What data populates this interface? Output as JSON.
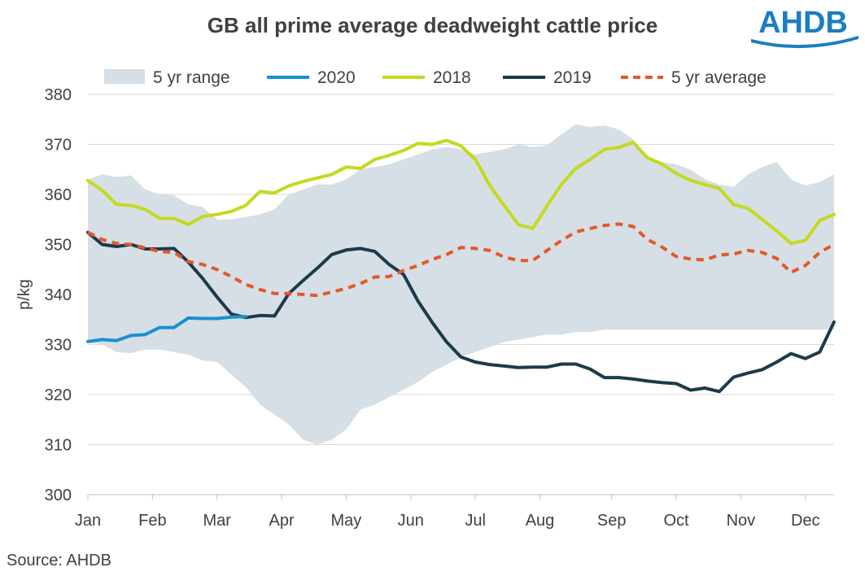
{
  "header": {
    "title": "GB all prime average deadweight cattle price",
    "logo_text": "AHDB"
  },
  "footer": {
    "source": "Source: AHDB"
  },
  "colors": {
    "range": "#d5dfe5",
    "s2020": "#1a8fd1",
    "s2018": "#c5d91e",
    "s2019": "#1d3a4a",
    "avg": "#e4582a",
    "grid": "#d9d9d9",
    "logo": "#1b7ec2"
  },
  "chart_data": {
    "type": "line",
    "title": "GB all prime average deadweight cattle price",
    "ylabel": "p/kg",
    "xlabel": "",
    "ylim": [
      300,
      380
    ],
    "yticks": [
      300,
      310,
      320,
      330,
      340,
      350,
      360,
      370,
      380
    ],
    "xlim": [
      1,
      53
    ],
    "x_ticks": [
      {
        "label": "Jan",
        "week": 1
      },
      {
        "label": "Feb",
        "week": 5.5
      },
      {
        "label": "Mar",
        "week": 10
      },
      {
        "label": "Apr",
        "week": 14.5
      },
      {
        "label": "May",
        "week": 19
      },
      {
        "label": "Jun",
        "week": 23.5
      },
      {
        "label": "Jul",
        "week": 28
      },
      {
        "label": "Aug",
        "week": 32.5
      },
      {
        "label": "Sep",
        "week": 37.5
      },
      {
        "label": "Oct",
        "week": 42
      },
      {
        "label": "Nov",
        "week": 46.5
      },
      {
        "label": "Dec",
        "week": 51
      }
    ],
    "grid": true,
    "legend_position": "top",
    "x": [
      1,
      2,
      3,
      4,
      5,
      6,
      7,
      8,
      9,
      10,
      11,
      12,
      13,
      14,
      15,
      16,
      17,
      18,
      19,
      20,
      21,
      22,
      23,
      24,
      25,
      26,
      27,
      28,
      29,
      30,
      31,
      32,
      33,
      34,
      35,
      36,
      37,
      38,
      39,
      40,
      41,
      42,
      43,
      44,
      45,
      46,
      47,
      48,
      49,
      50,
      51,
      52,
      53
    ],
    "range": {
      "name": "5 yr range",
      "upper": [
        363.0,
        364.0,
        363.5,
        363.8,
        361.0,
        360.0,
        359.8,
        358.0,
        357.5,
        355.0,
        355.0,
        355.5,
        356.0,
        357.0,
        360.0,
        361.0,
        362.0,
        362.0,
        363.0,
        365.0,
        365.5,
        366.0,
        367.0,
        368.0,
        369.0,
        369.5,
        369.0,
        368.0,
        368.5,
        369.0,
        370.0,
        369.5,
        369.8,
        372.0,
        374.0,
        373.5,
        373.8,
        373.0,
        371.0,
        367.0,
        366.5,
        366.0,
        365.0,
        363.0,
        362.0,
        361.5,
        364.0,
        365.5,
        366.5,
        363.0,
        361.8,
        362.5,
        364.0
      ],
      "lower": [
        330.5,
        330.0,
        328.5,
        328.3,
        329.0,
        329.0,
        328.5,
        328.0,
        326.8,
        326.5,
        324.0,
        321.5,
        318.0,
        316.0,
        314.0,
        311.0,
        310.0,
        311.0,
        313.0,
        317.0,
        318.0,
        319.5,
        321.0,
        322.5,
        324.5,
        326.0,
        327.5,
        328.5,
        329.5,
        330.5,
        331.0,
        331.5,
        332.0,
        332.0,
        332.5,
        332.5,
        333.0,
        333.0,
        333.0,
        333.0,
        333.0,
        333.0,
        333.0,
        333.0,
        333.0,
        333.0,
        333.0,
        333.0,
        333.0,
        333.0,
        333.0,
        333.0,
        333.0
      ]
    },
    "series": [
      {
        "name": "2020",
        "key": "s2020",
        "dashed": false,
        "values": [
          330.6,
          331.0,
          330.8,
          331.8,
          332.0,
          333.4,
          333.4,
          335.3,
          335.2,
          335.2,
          335.5,
          335.6,
          null,
          null,
          null,
          null,
          null,
          null,
          null,
          null,
          null,
          null,
          null,
          null,
          null,
          null,
          null,
          null,
          null,
          null,
          null,
          null,
          null,
          null,
          null,
          null,
          null,
          null,
          null,
          null,
          null,
          null,
          null,
          null,
          null,
          null,
          null,
          null,
          null,
          null,
          null,
          null,
          null
        ]
      },
      {
        "name": "2018",
        "key": "s2018",
        "dashed": false,
        "values": [
          362.8,
          360.8,
          358.0,
          357.8,
          357.0,
          355.2,
          355.2,
          354.0,
          355.6,
          356.0,
          356.6,
          357.8,
          360.6,
          360.3,
          361.7,
          362.6,
          363.3,
          364.0,
          365.5,
          365.2,
          367.0,
          367.8,
          368.8,
          370.2,
          370.0,
          370.8,
          369.7,
          367.0,
          361.8,
          357.8,
          354.0,
          353.2,
          357.7,
          362.0,
          365.2,
          367.0,
          369.0,
          369.4,
          370.4,
          367.3,
          366.1,
          364.2,
          362.8,
          362.0,
          361.2,
          358.0,
          357.2,
          355.0,
          352.7,
          350.2,
          350.8,
          354.8,
          356.0
        ]
      },
      {
        "name": "2019",
        "key": "s2019",
        "dashed": false,
        "values": [
          352.4,
          350.0,
          349.6,
          350.0,
          349.1,
          349.1,
          349.2,
          346.5,
          343.2,
          339.5,
          336.1,
          335.4,
          335.8,
          335.7,
          340.2,
          342.8,
          345.3,
          348.0,
          348.9,
          349.2,
          348.6,
          346.0,
          344.0,
          338.7,
          334.4,
          330.5,
          327.5,
          326.5,
          326.0,
          325.7,
          325.4,
          325.5,
          325.5,
          326.1,
          326.1,
          325.1,
          323.4,
          323.4,
          323.1,
          322.7,
          322.4,
          322.2,
          320.9,
          321.3,
          320.6,
          323.5,
          324.3,
          325.0,
          326.5,
          328.2,
          327.2,
          328.5,
          334.5
        ]
      },
      {
        "name": "5 yr average",
        "key": "avg",
        "dashed": true,
        "values": [
          352.4,
          351.0,
          350.2,
          350.0,
          349.3,
          348.6,
          348.4,
          346.6,
          346.0,
          345.0,
          343.6,
          342.0,
          341.0,
          340.2,
          340.2,
          340.0,
          339.8,
          340.5,
          341.2,
          342.2,
          343.5,
          343.6,
          344.8,
          345.8,
          347.0,
          348.0,
          349.4,
          349.2,
          348.8,
          347.5,
          346.8,
          346.8,
          348.8,
          350.8,
          352.5,
          353.2,
          353.8,
          354.1,
          353.6,
          351.0,
          349.5,
          347.6,
          347.1,
          346.9,
          347.9,
          348.1,
          348.8,
          348.4,
          347.2,
          344.4,
          345.8,
          348.4,
          350.0
        ]
      }
    ]
  }
}
